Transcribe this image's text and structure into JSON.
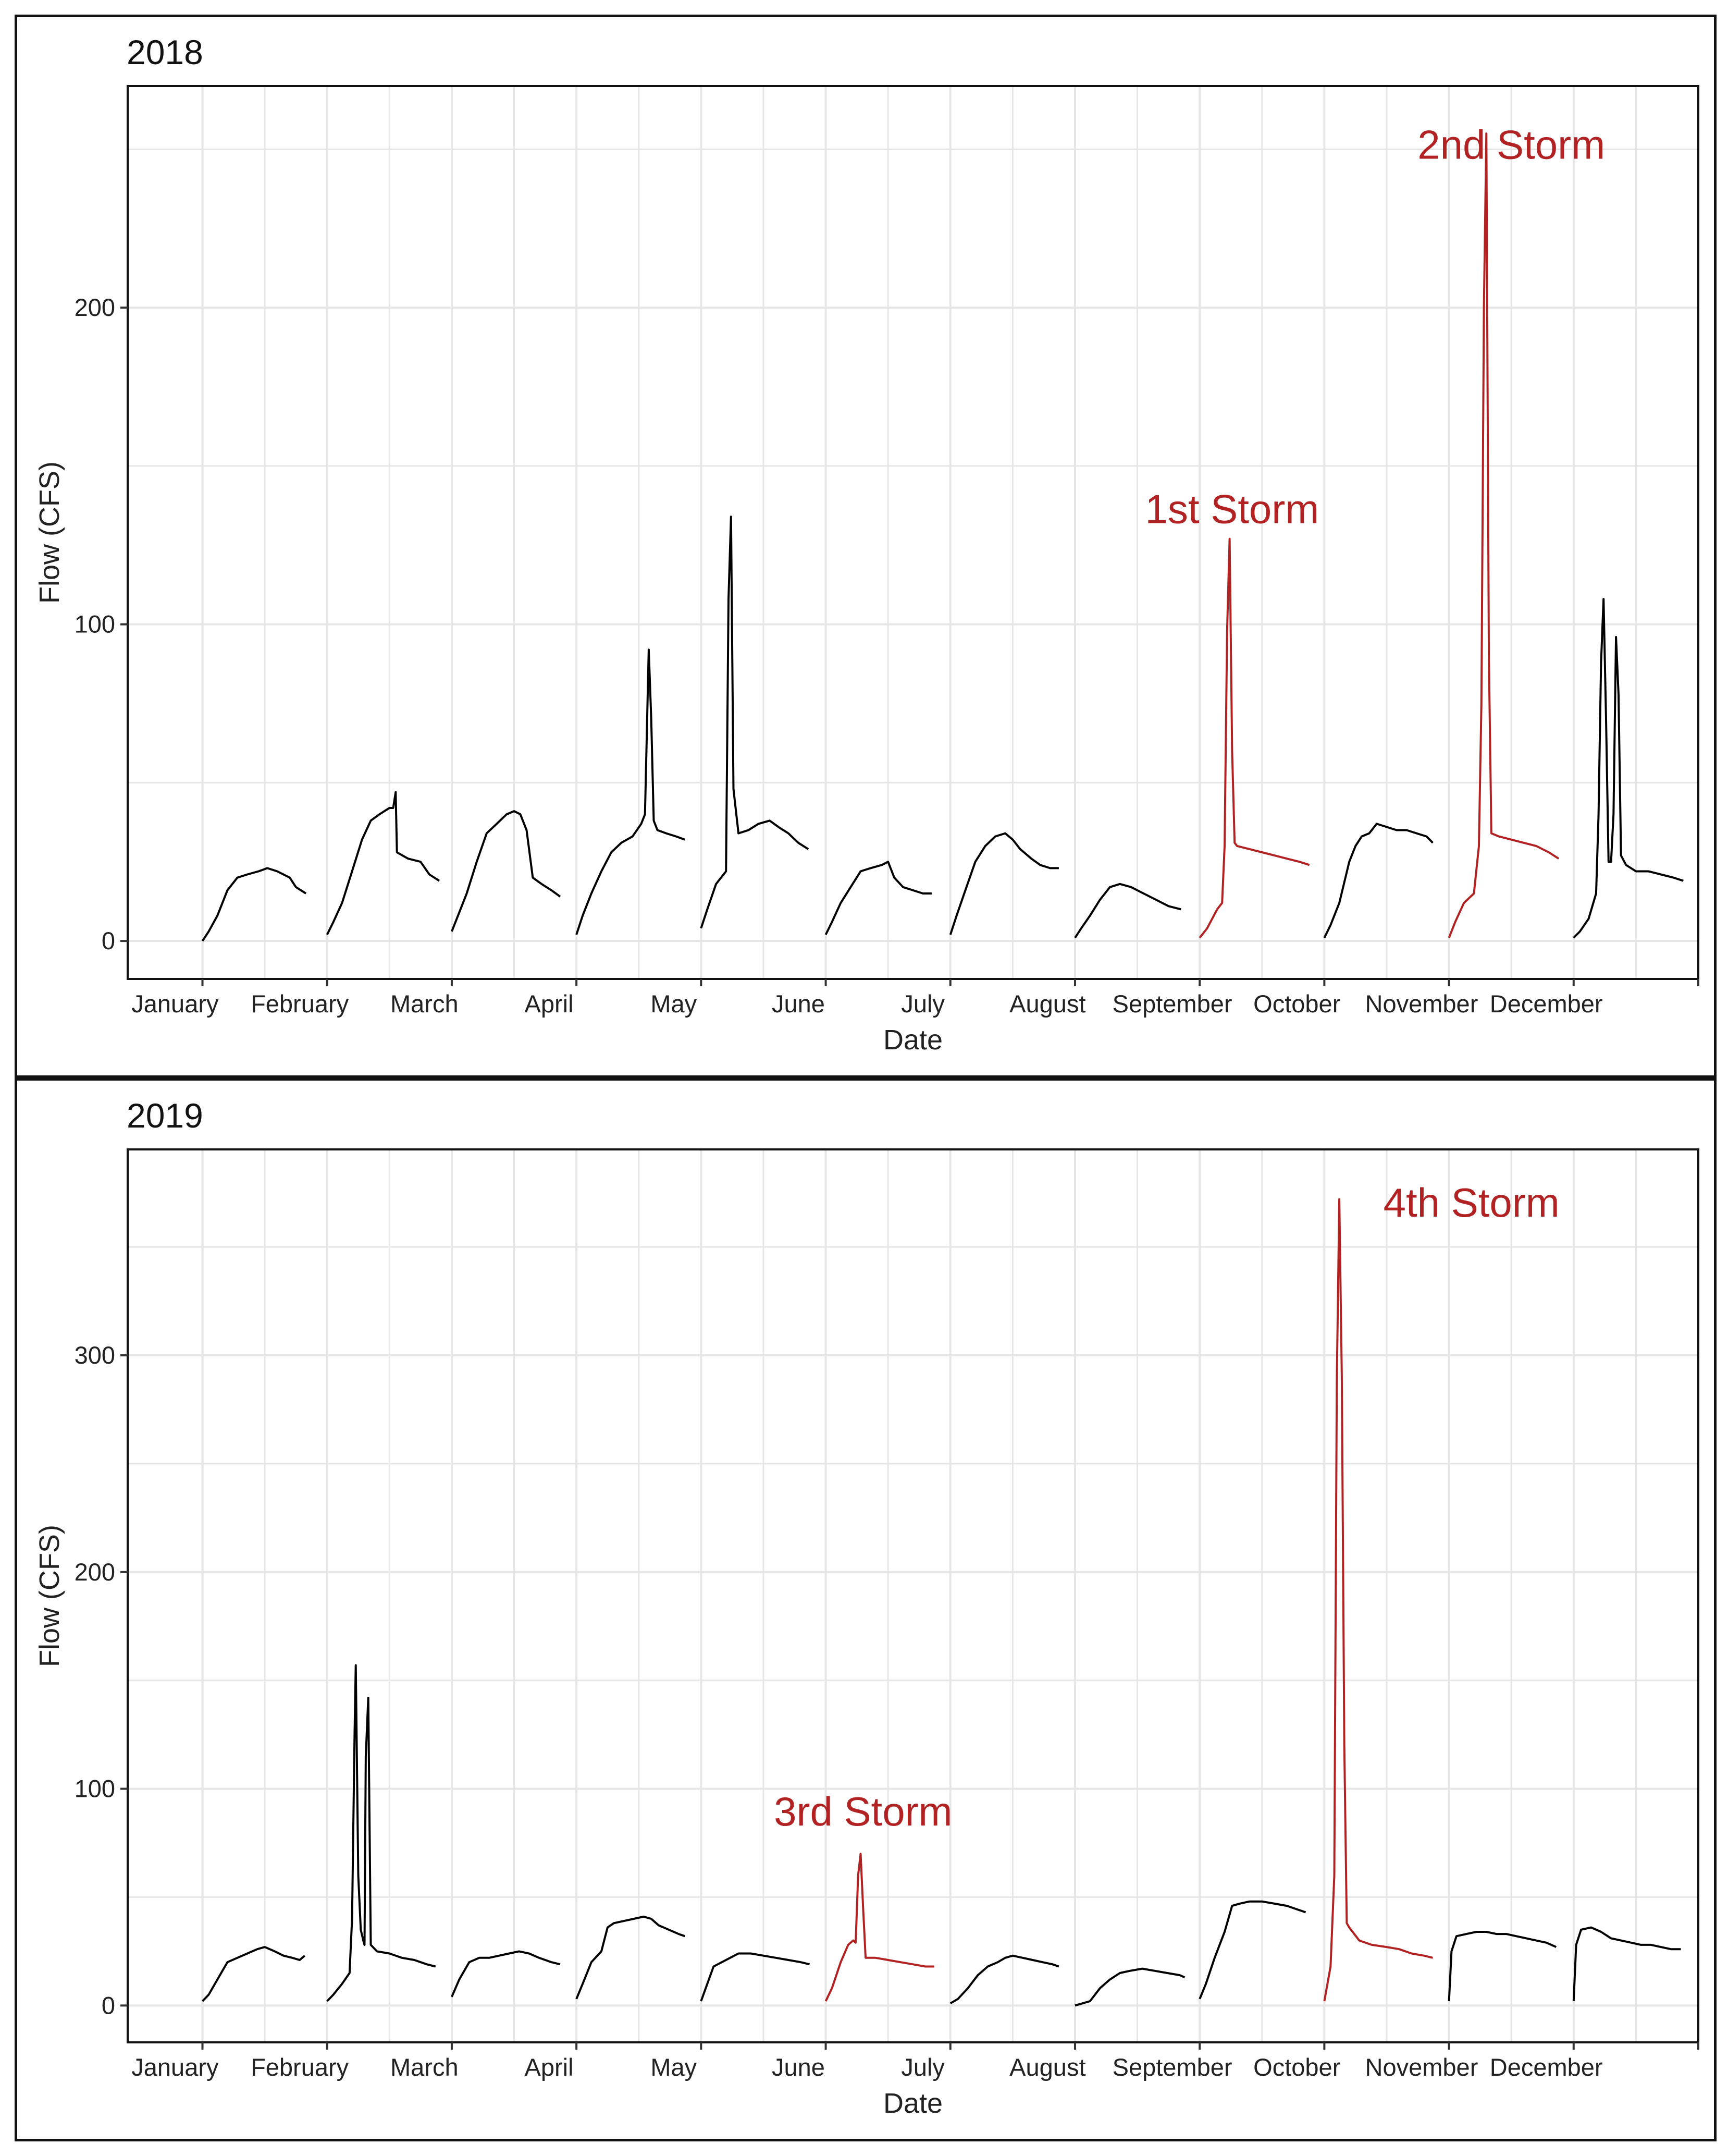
{
  "chart_data": [
    {
      "type": "line",
      "title": "2018",
      "xlabel": "Date",
      "ylabel": "Flow (CFS)",
      "x_unit": "month (1 = January)",
      "categories": [
        "January",
        "February",
        "March",
        "April",
        "May",
        "June",
        "July",
        "August",
        "September",
        "October",
        "November",
        "December"
      ],
      "yticks": [
        "0",
        "100",
        "200"
      ],
      "ylim": [
        -12,
        270
      ],
      "xlim": [
        0.4,
        13.0
      ],
      "colors": {
        "baseline": "#000000",
        "storm": "#b22222",
        "grid": "#e6e6e6",
        "panel": "#111111"
      },
      "series": [
        {
          "name": "January",
          "storm": false,
          "x": [
            1.0,
            1.05,
            1.12,
            1.2,
            1.28,
            1.36,
            1.45,
            1.52,
            1.6,
            1.7,
            1.75,
            1.83
          ],
          "y": [
            0,
            3,
            8,
            16,
            20,
            21,
            22,
            23,
            22,
            20,
            17,
            15
          ]
        },
        {
          "name": "February",
          "storm": false,
          "x": [
            2.0,
            2.05,
            2.12,
            2.2,
            2.28,
            2.35,
            2.42,
            2.5,
            2.53,
            2.55,
            2.56,
            2.65,
            2.75,
            2.82,
            2.9
          ],
          "y": [
            2,
            6,
            12,
            22,
            32,
            38,
            40,
            42,
            42,
            47,
            28,
            26,
            25,
            21,
            19
          ]
        },
        {
          "name": "March",
          "storm": false,
          "x": [
            3.0,
            3.05,
            3.12,
            3.2,
            3.28,
            3.36,
            3.44,
            3.5,
            3.55,
            3.6,
            3.65,
            3.72,
            3.8,
            3.87
          ],
          "y": [
            3,
            8,
            15,
            25,
            34,
            37,
            40,
            41,
            40,
            35,
            20,
            18,
            16,
            14
          ]
        },
        {
          "name": "April",
          "storm": false,
          "x": [
            4.0,
            4.05,
            4.12,
            4.2,
            4.28,
            4.36,
            4.45,
            4.52,
            4.55,
            4.58,
            4.6,
            4.62,
            4.65,
            4.72,
            4.8,
            4.87
          ],
          "y": [
            2,
            8,
            15,
            22,
            28,
            31,
            33,
            37,
            40,
            92,
            70,
            38,
            35,
            34,
            33,
            32
          ]
        },
        {
          "name": "May",
          "storm": false,
          "x": [
            5.0,
            5.05,
            5.12,
            5.2,
            5.22,
            5.24,
            5.26,
            5.3,
            5.38,
            5.46,
            5.55,
            5.62,
            5.7,
            5.78,
            5.86
          ],
          "y": [
            4,
            10,
            18,
            22,
            108,
            134,
            48,
            34,
            35,
            37,
            38,
            36,
            34,
            31,
            29
          ]
        },
        {
          "name": "June",
          "storm": false,
          "x": [
            6.0,
            6.05,
            6.12,
            6.2,
            6.28,
            6.36,
            6.45,
            6.5,
            6.55,
            6.62,
            6.7,
            6.78,
            6.85
          ],
          "y": [
            2,
            6,
            12,
            17,
            22,
            23,
            24,
            25,
            20,
            17,
            16,
            15,
            15
          ]
        },
        {
          "name": "July",
          "storm": false,
          "x": [
            7.0,
            7.05,
            7.12,
            7.2,
            7.28,
            7.36,
            7.44,
            7.5,
            7.56,
            7.65,
            7.72,
            7.8,
            7.87
          ],
          "y": [
            2,
            8,
            16,
            25,
            30,
            33,
            34,
            32,
            29,
            26,
            24,
            23,
            23
          ]
        },
        {
          "name": "August",
          "storm": false,
          "x": [
            8.0,
            8.05,
            8.12,
            8.2,
            8.28,
            8.36,
            8.45,
            8.55,
            8.65,
            8.75,
            8.85
          ],
          "y": [
            1,
            4,
            8,
            13,
            17,
            18,
            17,
            15,
            13,
            11,
            10
          ]
        },
        {
          "name": "September",
          "storm": true,
          "x": [
            9.0,
            9.06,
            9.14,
            9.18,
            9.2,
            9.22,
            9.24,
            9.26,
            9.28,
            9.3,
            9.4,
            9.5,
            9.6,
            9.7,
            9.8,
            9.88
          ],
          "y": [
            1,
            4,
            10,
            12,
            30,
            98,
            127,
            60,
            31,
            30,
            29,
            28,
            27,
            26,
            25,
            24
          ]
        },
        {
          "name": "October",
          "storm": false,
          "x": [
            10.0,
            10.05,
            10.12,
            10.2,
            10.25,
            10.3,
            10.36,
            10.42,
            10.5,
            10.58,
            10.66,
            10.74,
            10.82,
            10.87
          ],
          "y": [
            1,
            5,
            12,
            25,
            30,
            33,
            34,
            37,
            36,
            35,
            35,
            34,
            33,
            31
          ]
        },
        {
          "name": "November",
          "storm": true,
          "x": [
            11.0,
            11.05,
            11.12,
            11.2,
            11.24,
            11.26,
            11.28,
            11.3,
            11.32,
            11.34,
            11.4,
            11.5,
            11.6,
            11.7,
            11.8,
            11.88
          ],
          "y": [
            1,
            6,
            12,
            15,
            30,
            75,
            200,
            255,
            90,
            34,
            33,
            32,
            31,
            30,
            28,
            26
          ]
        },
        {
          "name": "December",
          "storm": false,
          "x": [
            12.0,
            12.05,
            12.12,
            12.18,
            12.2,
            12.22,
            12.24,
            12.26,
            12.28,
            12.3,
            12.32,
            12.34,
            12.36,
            12.38,
            12.42,
            12.5,
            12.6,
            12.7,
            12.8,
            12.88
          ],
          "y": [
            1,
            3,
            7,
            15,
            40,
            88,
            108,
            70,
            25,
            25,
            40,
            96,
            78,
            27,
            24,
            22,
            22,
            21,
            20,
            19
          ]
        }
      ],
      "annotations": [
        {
          "text": "1st Storm",
          "x": 9.26,
          "y": 132
        },
        {
          "text": "2nd Storm",
          "x": 11.5,
          "y": 247
        }
      ]
    },
    {
      "type": "line",
      "title": "2019",
      "xlabel": "Date",
      "ylabel": "Flow (CFS)",
      "x_unit": "month (1 = January)",
      "categories": [
        "January",
        "February",
        "March",
        "April",
        "May",
        "June",
        "July",
        "August",
        "September",
        "October",
        "November",
        "December"
      ],
      "yticks": [
        "0",
        "100",
        "200",
        "300"
      ],
      "ylim": [
        -17,
        395
      ],
      "xlim": [
        0.4,
        13.0
      ],
      "colors": {
        "baseline": "#000000",
        "storm": "#b22222",
        "grid": "#e6e6e6",
        "panel": "#111111"
      },
      "series": [
        {
          "name": "January",
          "storm": false,
          "x": [
            1.0,
            1.05,
            1.12,
            1.2,
            1.28,
            1.36,
            1.44,
            1.5,
            1.58,
            1.65,
            1.72,
            1.78,
            1.82
          ],
          "y": [
            2,
            5,
            12,
            20,
            22,
            24,
            26,
            27,
            25,
            23,
            22,
            21,
            23
          ]
        },
        {
          "name": "February",
          "storm": false,
          "x": [
            2.0,
            2.05,
            2.12,
            2.18,
            2.2,
            2.22,
            2.23,
            2.25,
            2.27,
            2.29,
            2.3,
            2.31,
            2.33,
            2.35,
            2.4,
            2.5,
            2.6,
            2.7,
            2.8,
            2.87
          ],
          "y": [
            2,
            5,
            10,
            15,
            40,
            125,
            157,
            60,
            35,
            30,
            28,
            115,
            142,
            28,
            25,
            24,
            22,
            21,
            19,
            18
          ]
        },
        {
          "name": "March",
          "storm": false,
          "x": [
            3.0,
            3.06,
            3.14,
            3.22,
            3.3,
            3.38,
            3.46,
            3.54,
            3.62,
            3.7,
            3.8,
            3.87
          ],
          "y": [
            4,
            12,
            20,
            22,
            22,
            23,
            24,
            25,
            24,
            22,
            20,
            19
          ]
        },
        {
          "name": "April",
          "storm": false,
          "x": [
            4.0,
            4.05,
            4.12,
            4.2,
            4.25,
            4.3,
            4.38,
            4.46,
            4.54,
            4.6,
            4.66,
            4.74,
            4.82,
            4.87
          ],
          "y": [
            3,
            10,
            20,
            25,
            36,
            38,
            39,
            40,
            41,
            40,
            37,
            35,
            33,
            32
          ]
        },
        {
          "name": "May",
          "storm": false,
          "x": [
            5.0,
            5.05,
            5.1,
            5.2,
            5.3,
            5.4,
            5.5,
            5.6,
            5.7,
            5.8,
            5.87
          ],
          "y": [
            2,
            10,
            18,
            21,
            24,
            24,
            23,
            22,
            21,
            20,
            19
          ]
        },
        {
          "name": "June",
          "storm": true,
          "x": [
            6.0,
            6.05,
            6.12,
            6.18,
            6.22,
            6.24,
            6.26,
            6.28,
            6.3,
            6.32,
            6.4,
            6.5,
            6.6,
            6.7,
            6.8,
            6.87
          ],
          "y": [
            2,
            8,
            20,
            28,
            30,
            29,
            60,
            70,
            45,
            22,
            22,
            21,
            20,
            19,
            18,
            18
          ]
        },
        {
          "name": "July",
          "storm": false,
          "x": [
            7.0,
            7.06,
            7.14,
            7.22,
            7.3,
            7.38,
            7.44,
            7.5,
            7.58,
            7.66,
            7.74,
            7.82,
            7.87
          ],
          "y": [
            1,
            3,
            8,
            14,
            18,
            20,
            22,
            23,
            22,
            21,
            20,
            19,
            18
          ]
        },
        {
          "name": "August",
          "storm": false,
          "x": [
            8.0,
            8.06,
            8.12,
            8.2,
            8.28,
            8.36,
            8.44,
            8.54,
            8.64,
            8.74,
            8.84,
            8.88
          ],
          "y": [
            0,
            1,
            2,
            8,
            12,
            15,
            16,
            17,
            16,
            15,
            14,
            13
          ]
        },
        {
          "name": "September",
          "storm": false,
          "x": [
            9.0,
            9.05,
            9.12,
            9.2,
            9.26,
            9.32,
            9.4,
            9.5,
            9.6,
            9.7,
            9.8,
            9.85
          ],
          "y": [
            3,
            10,
            22,
            34,
            46,
            47,
            48,
            48,
            47,
            46,
            44,
            43
          ]
        },
        {
          "name": "October",
          "storm": true,
          "x": [
            10.0,
            10.05,
            10.08,
            10.1,
            10.12,
            10.14,
            10.16,
            10.18,
            10.2,
            10.28,
            10.38,
            10.5,
            10.6,
            10.7,
            10.8,
            10.87
          ],
          "y": [
            2,
            18,
            60,
            288,
            372,
            290,
            120,
            38,
            36,
            30,
            28,
            27,
            26,
            24,
            23,
            22
          ]
        },
        {
          "name": "November",
          "storm": false,
          "x": [
            11.0,
            11.02,
            11.06,
            11.14,
            11.22,
            11.3,
            11.38,
            11.46,
            11.54,
            11.62,
            11.7,
            11.78,
            11.86
          ],
          "y": [
            2,
            25,
            32,
            33,
            34,
            34,
            33,
            33,
            32,
            31,
            30,
            29,
            27
          ]
        },
        {
          "name": "December",
          "storm": false,
          "x": [
            12.0,
            12.02,
            12.06,
            12.14,
            12.22,
            12.3,
            12.38,
            12.46,
            12.54,
            12.62,
            12.7,
            12.78,
            12.86
          ],
          "y": [
            2,
            28,
            35,
            36,
            34,
            31,
            30,
            29,
            28,
            28,
            27,
            26,
            26
          ]
        }
      ],
      "annotations": [
        {
          "text": "3rd Storm",
          "x": 6.3,
          "y": 83
        },
        {
          "text": "4th Storm",
          "x": 11.18,
          "y": 364
        }
      ]
    }
  ]
}
